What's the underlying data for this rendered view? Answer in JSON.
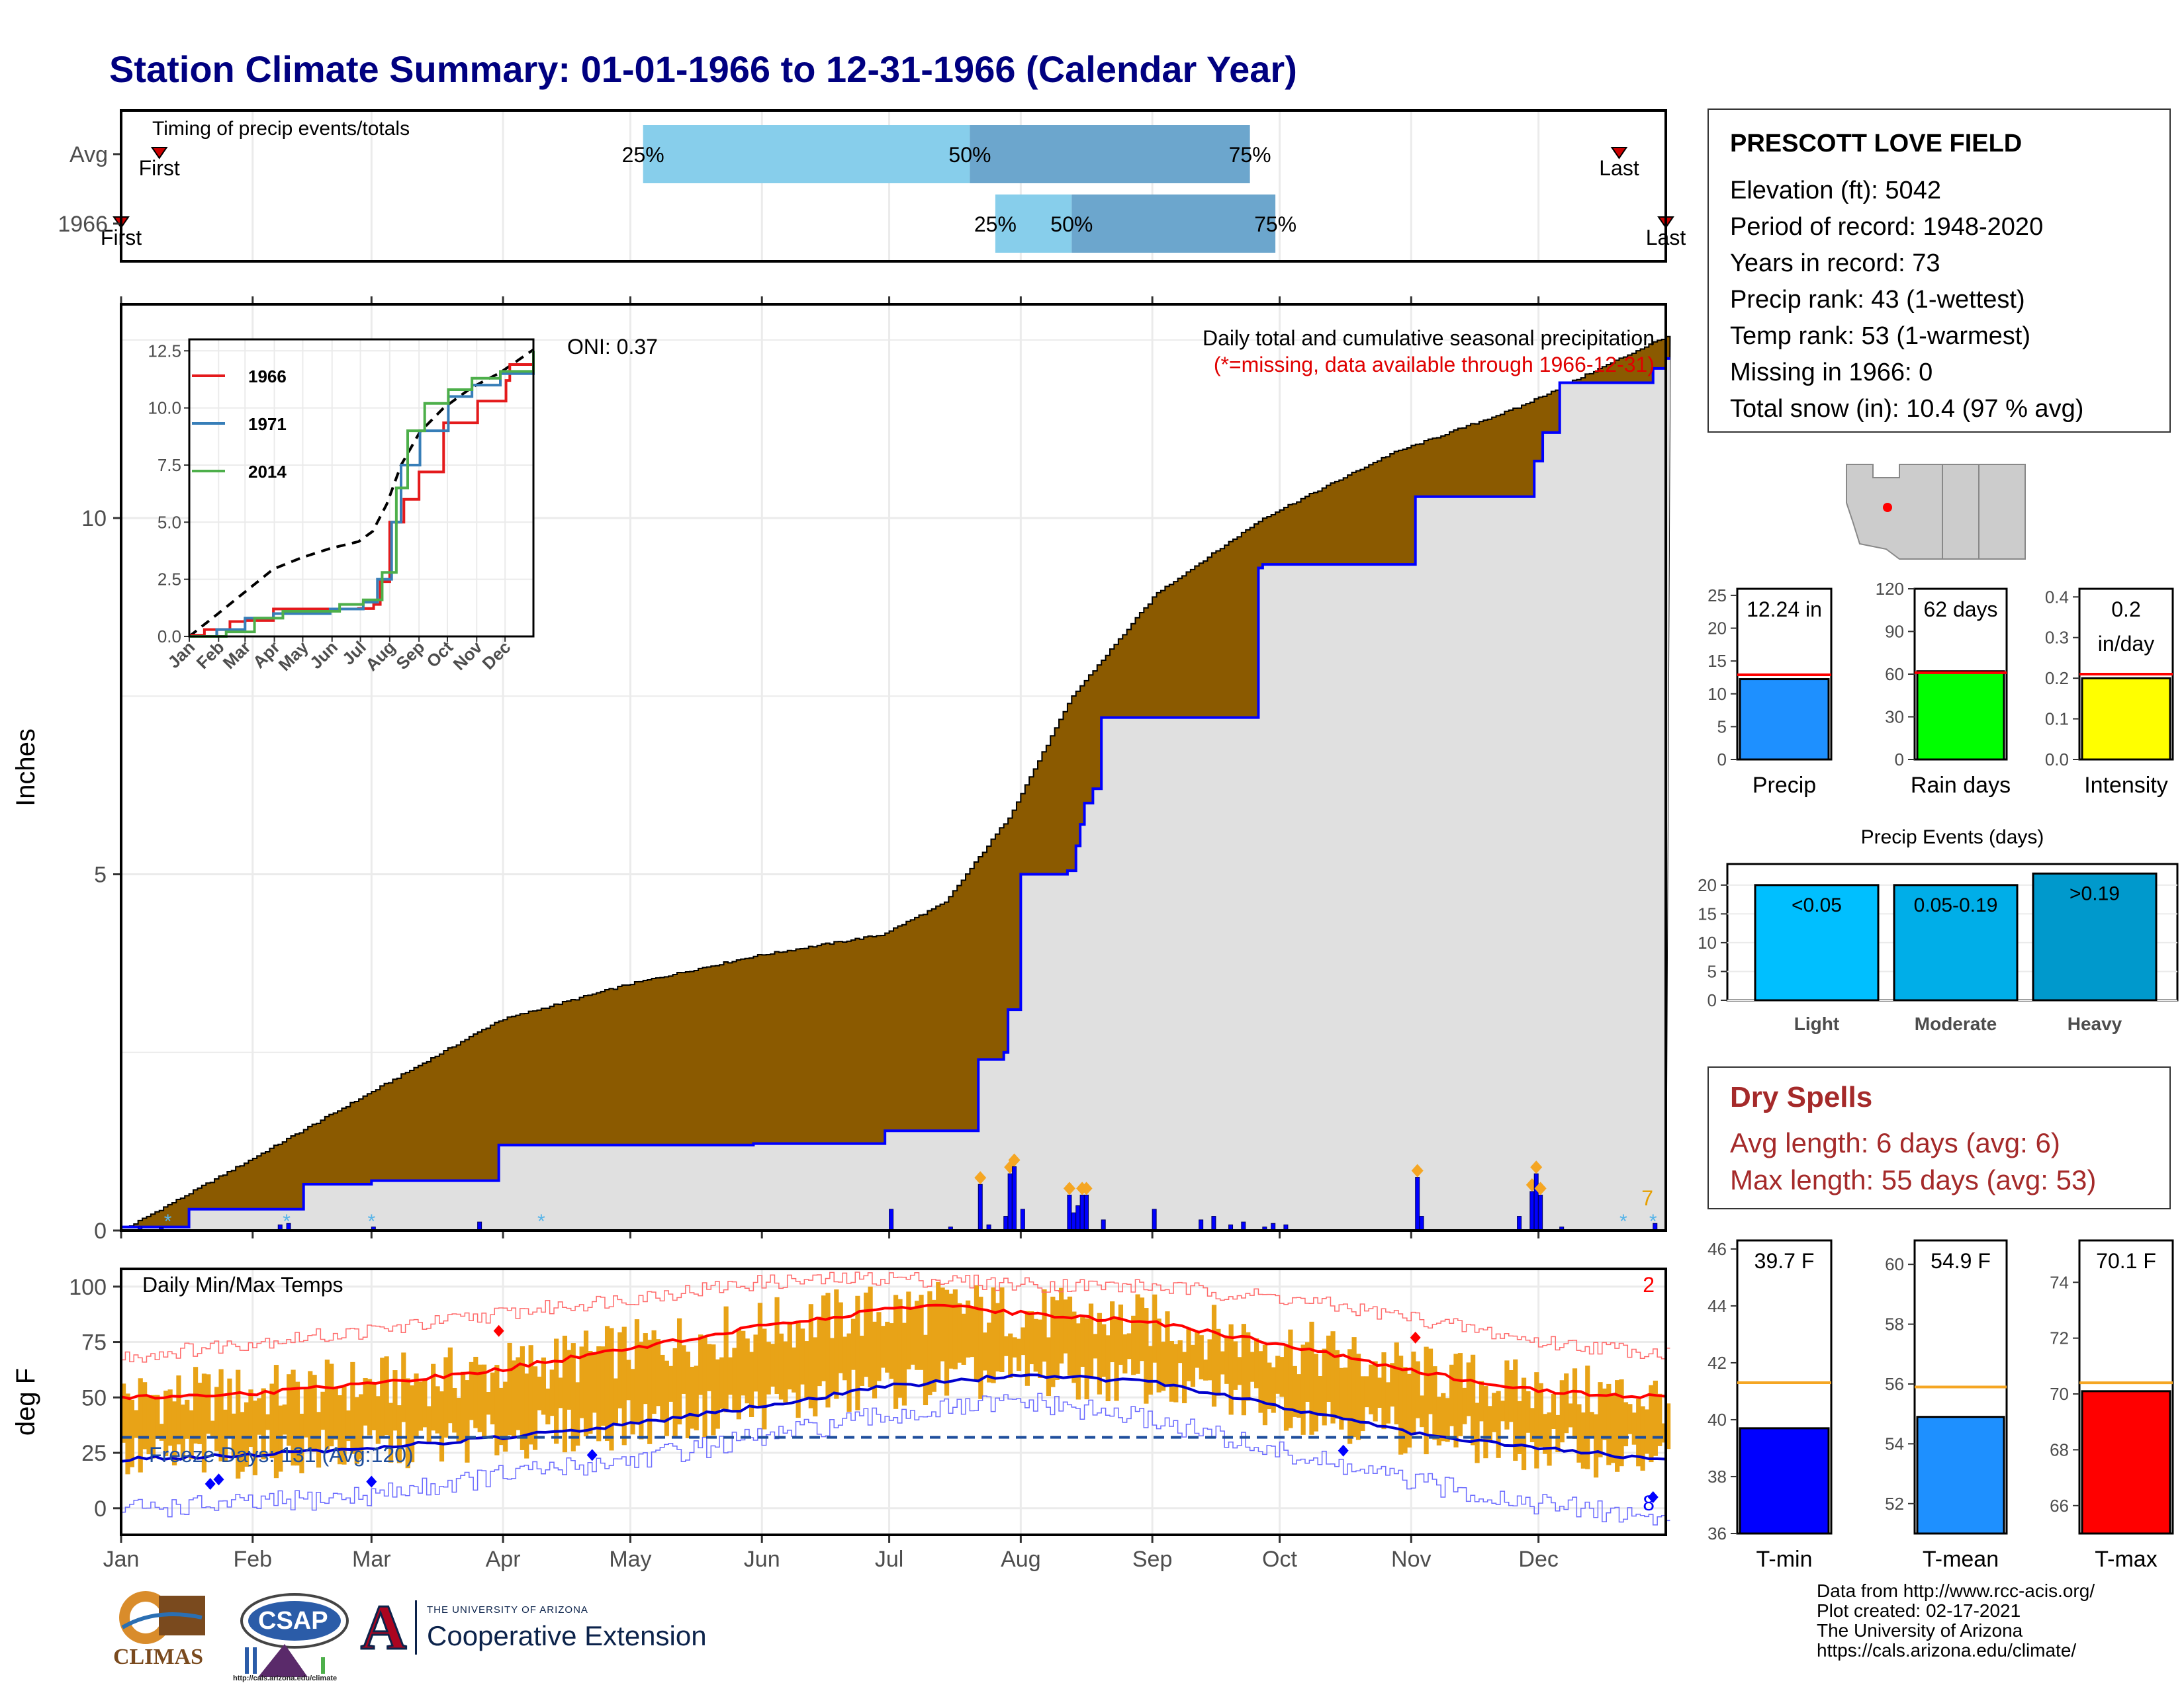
{
  "title": "Station Climate Summary: 01-01-1966 to 12-31-1966 (Calendar Year)",
  "station": {
    "name": "PRESCOTT LOVE FIELD",
    "lines": [
      "Elevation (ft): 5042",
      "Period of record: 1948-2020",
      "Years in record: 73",
      "Precip rank: 43 (1-wettest)",
      "Temp rank: 53 (1-warmest)",
      "Missing in 1966: 0",
      "Total snow (in): 10.4 (97 % avg)"
    ]
  },
  "dry_spells": {
    "heading": "Dry Spells",
    "avg_length": "Avg length: 6 days (avg: 6)",
    "max_length": "Max length: 55 days (avg: 53)"
  },
  "credits": {
    "lines": [
      "Data from http://www.rcc-acis.org/",
      "Plot created: 02-17-2021",
      "The University of Arizona",
      "https://cals.arizona.edu/climate/"
    ]
  },
  "logos": {
    "climas": "CLIMAS",
    "csap": "CSAP",
    "csap_url": "http://cals.arizona.edu/climate",
    "ua_line1": "THE UNIVERSITY OF ARIZONA",
    "ua_line2": "Cooperative Extension",
    "ua_letter": "A"
  },
  "colors": {
    "title": "#000080",
    "cumulative_fill": "#8B5A00",
    "daily_bars": "#0000ff",
    "avg_bar_light": "#87CEEB",
    "avg_bar_dark": "#6CA6CD",
    "temp_bars": "#E8A317",
    "tmax_line": "#ff0000",
    "tmin_line": "#0000cd",
    "dry_spells": "#a52a2a"
  },
  "chart_data": [
    {
      "id": "timing",
      "type": "bar",
      "title": "Timing of precip events/totals",
      "rows": [
        "Avg",
        "1966"
      ],
      "x_months": [
        "Jan",
        "Feb",
        "Mar",
        "Apr",
        "May",
        "Jun",
        "Jul",
        "Aug",
        "Sep",
        "Oct",
        "Nov",
        "Dec"
      ],
      "avg": {
        "first_doy": 10,
        "q25_doy": 124,
        "q50_doy": 201,
        "q75_doy": 267,
        "last_doy": 354,
        "labels": [
          "First",
          "25%",
          "50%",
          "75%",
          "Last"
        ]
      },
      "year": {
        "first_doy": 1,
        "q25_doy": 207,
        "q50_doy": 225,
        "q75_doy": 273,
        "last_doy": 365,
        "labels": [
          "First",
          "25%",
          "50%",
          "75%",
          "Last"
        ]
      }
    },
    {
      "id": "cumulative",
      "type": "area",
      "title": "Daily total and cumulative seasonal precipitation",
      "subtitle": "(*=missing, data available through 1966-12-31)",
      "ylabel": "Inches",
      "ylim": [
        0,
        13
      ],
      "yticks": [
        0,
        5,
        10
      ],
      "oni": "ONI: 0.37",
      "corner_count": "7",
      "x_months": [
        "Jan",
        "Feb",
        "Mar",
        "Apr",
        "May",
        "Jun",
        "Jul",
        "Aug",
        "Sep",
        "Oct",
        "Nov",
        "Dec"
      ],
      "avg_cumulative": {
        "doy": [
          1,
          30,
          60,
          90,
          120,
          150,
          180,
          195,
          210,
          225,
          245,
          270,
          300,
          330,
          365
        ],
        "values": [
          0.0,
          0.95,
          1.95,
          2.95,
          3.45,
          3.85,
          4.15,
          4.6,
          5.8,
          7.5,
          8.95,
          10.0,
          10.9,
          11.55,
          12.55
        ]
      },
      "year_cumulative": {
        "doy": [
          1,
          12,
          17,
          32,
          44,
          60,
          90,
          120,
          150,
          180,
          181,
          196,
          203,
          209,
          210,
          213,
          224,
          226,
          227,
          228,
          230,
          232,
          244,
          269,
          270,
          298,
          306,
          330,
          334,
          336,
          340,
          360,
          362,
          365
        ],
        "values": [
          0.05,
          0.05,
          0.3,
          0.3,
          0.65,
          0.7,
          1.2,
          1.2,
          1.22,
          1.22,
          1.4,
          1.4,
          2.4,
          2.5,
          3.1,
          5.0,
          5.05,
          5.4,
          5.7,
          6.0,
          6.2,
          7.2,
          7.2,
          9.3,
          9.35,
          9.35,
          10.3,
          10.3,
          10.8,
          11.2,
          11.9,
          11.9,
          12.1,
          12.24
        ]
      },
      "daily": {
        "doy": [
          5,
          10,
          38,
          40,
          60,
          85,
          182,
          196,
          203,
          205,
          209,
          210,
          211,
          213,
          224,
          225,
          226,
          227,
          228,
          232,
          244,
          255,
          258,
          262,
          265,
          270,
          272,
          275,
          306,
          307,
          330,
          333,
          334,
          335,
          340,
          362
        ],
        "values": [
          0.05,
          0.04,
          0.08,
          0.1,
          0.05,
          0.12,
          0.3,
          0.05,
          0.65,
          0.08,
          0.2,
          0.8,
          0.9,
          0.3,
          0.5,
          0.25,
          0.35,
          0.5,
          0.5,
          0.15,
          0.3,
          0.15,
          0.2,
          0.08,
          0.12,
          0.05,
          0.1,
          0.08,
          0.75,
          0.2,
          0.2,
          0.55,
          0.8,
          0.5,
          0.05,
          0.1
        ]
      }
    },
    {
      "id": "inset",
      "type": "line",
      "xticks": [
        "Jan",
        "Feb",
        "Mar",
        "Apr",
        "May",
        "Jun",
        "Jul",
        "Aug",
        "Sep",
        "Oct",
        "Nov",
        "Dec"
      ],
      "yticks": [
        "0.0",
        "2.5",
        "5.0",
        "7.5",
        "10.0",
        "12.5"
      ],
      "ylim": [
        0,
        13
      ],
      "series": [
        {
          "name": "1966",
          "color": "#e41a1c",
          "doy": [
            1,
            17,
            44,
            60,
            90,
            180,
            196,
            203,
            213,
            228,
            244,
            270,
            306,
            336,
            340,
            365
          ],
          "values": [
            0.05,
            0.3,
            0.65,
            0.7,
            1.2,
            1.22,
            1.4,
            2.4,
            5.0,
            6.0,
            7.2,
            9.35,
            10.3,
            11.2,
            11.9,
            12.24
          ]
        },
        {
          "name": "1971",
          "color": "#377eb8",
          "doy": [
            1,
            30,
            60,
            90,
            150,
            185,
            200,
            215,
            225,
            245,
            275,
            300,
            330,
            365
          ],
          "values": [
            0,
            0.3,
            0.8,
            1.0,
            1.2,
            1.5,
            2.5,
            5.0,
            7.5,
            9.0,
            10.5,
            11.0,
            11.5,
            12.0
          ]
        },
        {
          "name": "2014",
          "color": "#4daf4a",
          "doy": [
            1,
            40,
            70,
            100,
            160,
            185,
            205,
            220,
            232,
            250,
            275,
            300,
            330,
            365
          ],
          "values": [
            0,
            0.2,
            0.8,
            1.1,
            1.4,
            1.6,
            2.8,
            6.5,
            9.0,
            10.2,
            10.8,
            11.3,
            11.6,
            12.5
          ]
        }
      ],
      "avg_series": {
        "doy": [
          1,
          30,
          60,
          90,
          120,
          150,
          180,
          195,
          210,
          225,
          245,
          270,
          300,
          330,
          365
        ],
        "values": [
          0.0,
          0.95,
          1.95,
          2.95,
          3.45,
          3.85,
          4.15,
          4.6,
          5.8,
          7.5,
          8.95,
          10.0,
          10.9,
          11.55,
          12.55
        ]
      }
    },
    {
      "id": "temps",
      "type": "bar",
      "title": "Daily Min/Max Temps",
      "ylabel": "deg F",
      "ylim": [
        -12,
        108
      ],
      "yticks": [
        0,
        25,
        50,
        75,
        100
      ],
      "freeze_line": 32,
      "freeze_text": "Freeze Days: 131 (Avg:120)",
      "record_max_count": "2",
      "record_min_count": "8",
      "x_months": [
        "Jan",
        "Feb",
        "Mar",
        "Apr",
        "May",
        "Jun",
        "Jul",
        "Aug",
        "Sep",
        "Oct",
        "Nov",
        "Dec"
      ],
      "avg_tmax": {
        "doy": [
          1,
          32,
          60,
          91,
          121,
          152,
          182,
          196,
          213,
          244,
          274,
          305,
          335,
          365
        ],
        "values": [
          50,
          52,
          56,
          63,
          72,
          82,
          90,
          91,
          88,
          84,
          74,
          62,
          53,
          50
        ]
      },
      "avg_tmin": {
        "doy": [
          1,
          32,
          60,
          91,
          121,
          152,
          182,
          213,
          244,
          274,
          305,
          335,
          365
        ],
        "values": [
          22,
          24,
          27,
          32,
          38,
          46,
          55,
          60,
          57,
          46,
          34,
          27,
          22
        ]
      },
      "rec_tmax": {
        "doy": [
          1,
          32,
          60,
          91,
          121,
          152,
          182,
          213,
          244,
          274,
          305,
          335,
          365
        ],
        "values": [
          68,
          75,
          80,
          88,
          95,
          102,
          104,
          101,
          100,
          95,
          86,
          75,
          70
        ]
      },
      "rec_tmin": {
        "doy": [
          1,
          32,
          60,
          91,
          121,
          152,
          182,
          213,
          244,
          274,
          305,
          335,
          365
        ],
        "values": [
          0,
          2,
          6,
          15,
          22,
          32,
          42,
          48,
          40,
          25,
          12,
          2,
          -5
        ]
      }
    },
    {
      "id": "summary_precip",
      "type": "bar",
      "categories": [
        "Precip",
        "Rain days",
        "Intensity"
      ],
      "values": [
        12.24,
        62,
        0.2
      ],
      "averages": [
        12.9,
        61,
        0.21
      ],
      "labels": [
        "12.24 in",
        "62 days",
        "0.2\nin/day"
      ],
      "ylims": [
        [
          0,
          26
        ],
        [
          0,
          120
        ],
        [
          0,
          0.42
        ]
      ],
      "yticks": [
        [
          "0",
          "5",
          "10",
          "15",
          "20",
          "25"
        ],
        [
          "0",
          "30",
          "60",
          "90",
          "120"
        ],
        [
          "0.0",
          "0.1",
          "0.2",
          "0.3",
          "0.4"
        ]
      ],
      "colors": [
        "#1E90FF",
        "#00FF00",
        "#FFFF00"
      ]
    },
    {
      "id": "precip_events",
      "type": "bar",
      "title": "Precip Events (days)",
      "categories": [
        "Light",
        "Moderate",
        "Heavy"
      ],
      "labels": [
        "<0.05",
        "0.05-0.19",
        ">0.19"
      ],
      "values": [
        20,
        20,
        22
      ],
      "ylim": [
        0,
        22
      ],
      "yticks": [
        "0",
        "5",
        "10",
        "15",
        "20"
      ],
      "colors": [
        "#00BFFF",
        "#00AEE8",
        "#0099CC"
      ]
    },
    {
      "id": "summary_temp",
      "type": "bar",
      "categories": [
        "T-min",
        "T-mean",
        "T-max"
      ],
      "values": [
        39.7,
        54.9,
        70.1
      ],
      "averages": [
        41.3,
        55.9,
        70.4
      ],
      "labels": [
        "39.7 F",
        "54.9 F",
        "70.1 F"
      ],
      "ylims": [
        [
          36,
          46.3
        ],
        [
          51,
          60.8
        ],
        [
          65,
          75.5
        ]
      ],
      "yticks": [
        [
          "36",
          "38",
          "40",
          "42",
          "44",
          "46"
        ],
        [
          "52",
          "54",
          "56",
          "58",
          "60"
        ],
        [
          "66",
          "68",
          "70",
          "72",
          "74"
        ]
      ],
      "colors": [
        "#0000FF",
        "#1E90FF",
        "#FF0000"
      ]
    }
  ]
}
